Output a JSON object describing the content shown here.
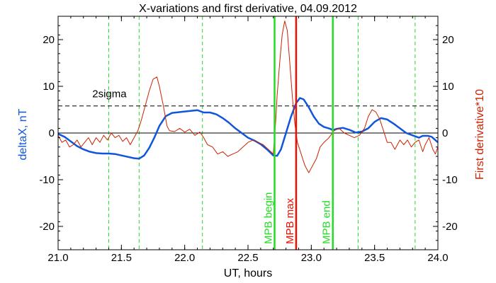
{
  "colors": {
    "background": "#ffffff",
    "axis": "#000000",
    "blue_series": "#1155dd",
    "red_series": "#cc2200",
    "green_lines": "#22dd22",
    "red_line": "#ee1100",
    "sigma_line": "#000000"
  },
  "chart_data": {
    "type": "line",
    "title": "X-variations and first derivative, 04.09.2012",
    "xlabel": "UT, hours",
    "ylabel_left": "deltaX, nT",
    "ylabel_right": "First derivative*10",
    "xlim": [
      21.0,
      24.0
    ],
    "ylim": [
      -25,
      25
    ],
    "x_ticks": [
      "21.0",
      "21.5",
      "22.0",
      "22.5",
      "23.0",
      "23.5",
      "24.0"
    ],
    "y_ticks_left": [
      "20",
      "10",
      "0",
      "-10",
      "-20"
    ],
    "y_ticks_right": [
      "20",
      "10",
      "0",
      "-10",
      "-20"
    ],
    "x_tick_values": [
      21.0,
      21.5,
      22.0,
      22.5,
      23.0,
      23.5,
      24.0
    ],
    "y_tick_values": [
      20,
      10,
      0,
      -10,
      -20
    ],
    "zero_line": 0,
    "sigma": {
      "label": "2sigma",
      "value": 5.8
    },
    "dashed_verticals": [
      21.4,
      21.64,
      22.14,
      23.37,
      23.82
    ],
    "markers": [
      {
        "label": "MPB begin",
        "x": 22.71,
        "color": "#22dd22"
      },
      {
        "label": "MPB max",
        "x": 22.88,
        "color": "#ee1100"
      },
      {
        "label": "MPB end",
        "x": 23.17,
        "color": "#22dd22"
      }
    ],
    "series": [
      {
        "name": "deltaX, nT",
        "color": "#1155dd",
        "points": [
          [
            21.0,
            -0.2
          ],
          [
            21.05,
            -0.8
          ],
          [
            21.1,
            -1.8
          ],
          [
            21.15,
            -2.8
          ],
          [
            21.2,
            -3.5
          ],
          [
            21.25,
            -4.0
          ],
          [
            21.3,
            -4.3
          ],
          [
            21.35,
            -4.4
          ],
          [
            21.4,
            -4.4
          ],
          [
            21.45,
            -4.5
          ],
          [
            21.5,
            -4.8
          ],
          [
            21.55,
            -5.1
          ],
          [
            21.6,
            -5.4
          ],
          [
            21.64,
            -5.5
          ],
          [
            21.68,
            -4.8
          ],
          [
            21.72,
            -3.2
          ],
          [
            21.76,
            -1.0
          ],
          [
            21.8,
            1.5
          ],
          [
            21.85,
            3.6
          ],
          [
            21.9,
            4.3
          ],
          [
            22.0,
            4.6
          ],
          [
            22.1,
            4.9
          ],
          [
            22.15,
            4.4
          ],
          [
            22.2,
            4.4
          ],
          [
            22.25,
            4.0
          ],
          [
            22.3,
            3.2
          ],
          [
            22.35,
            2.2
          ],
          [
            22.4,
            1.0
          ],
          [
            22.45,
            0.0
          ],
          [
            22.5,
            -1.0
          ],
          [
            22.55,
            -1.6
          ],
          [
            22.6,
            -2.4
          ],
          [
            22.65,
            -3.5
          ],
          [
            22.7,
            -4.8
          ],
          [
            22.73,
            -4.9
          ],
          [
            22.76,
            -3.5
          ],
          [
            22.8,
            0.0
          ],
          [
            22.84,
            3.5
          ],
          [
            22.88,
            6.4
          ],
          [
            22.91,
            7.5
          ],
          [
            22.94,
            7.2
          ],
          [
            22.98,
            5.5
          ],
          [
            23.02,
            3.5
          ],
          [
            23.06,
            2.0
          ],
          [
            23.1,
            1.3
          ],
          [
            23.15,
            0.9
          ],
          [
            23.17,
            0.6
          ],
          [
            23.2,
            0.9
          ],
          [
            23.25,
            1.1
          ],
          [
            23.3,
            0.7
          ],
          [
            23.35,
            0.1
          ],
          [
            23.4,
            0.3
          ],
          [
            23.45,
            1.0
          ],
          [
            23.5,
            2.4
          ],
          [
            23.55,
            3.2
          ],
          [
            23.6,
            2.9
          ],
          [
            23.65,
            2.0
          ],
          [
            23.7,
            1.0
          ],
          [
            23.75,
            0.0
          ],
          [
            23.8,
            -0.5
          ],
          [
            23.85,
            -1.0
          ],
          [
            23.88,
            -0.6
          ],
          [
            23.92,
            -0.6
          ],
          [
            23.95,
            -0.8
          ],
          [
            24.0,
            -2.0
          ]
        ]
      },
      {
        "name": "First derivative*10",
        "color": "#cc2200",
        "points": [
          [
            21.0,
            -0.5
          ],
          [
            21.03,
            -2.0
          ],
          [
            21.06,
            -1.5
          ],
          [
            21.09,
            -3.0
          ],
          [
            21.12,
            -2.5
          ],
          [
            21.15,
            -1.5
          ],
          [
            21.18,
            -3.0
          ],
          [
            21.21,
            -2.0
          ],
          [
            21.24,
            -1.0
          ],
          [
            21.27,
            -2.5
          ],
          [
            21.3,
            -1.0
          ],
          [
            21.33,
            -2.0
          ],
          [
            21.36,
            -0.5
          ],
          [
            21.39,
            -1.5
          ],
          [
            21.42,
            0.0
          ],
          [
            21.45,
            -1.0
          ],
          [
            21.48,
            -0.5
          ],
          [
            21.51,
            -1.8
          ],
          [
            21.54,
            -1.0
          ],
          [
            21.57,
            -2.5
          ],
          [
            21.6,
            -1.0
          ],
          [
            21.63,
            0.5
          ],
          [
            21.66,
            3.0
          ],
          [
            21.69,
            6.0
          ],
          [
            21.72,
            9.0
          ],
          [
            21.75,
            11.5
          ],
          [
            21.78,
            12.0
          ],
          [
            21.8,
            10.0
          ],
          [
            21.83,
            6.0
          ],
          [
            21.86,
            1.5
          ],
          [
            21.88,
            0.5
          ],
          [
            21.92,
            0.3
          ],
          [
            21.96,
            1.0
          ],
          [
            22.0,
            0.2
          ],
          [
            22.04,
            0.8
          ],
          [
            22.08,
            -0.5
          ],
          [
            22.12,
            0.2
          ],
          [
            22.15,
            -1.0
          ],
          [
            22.18,
            -2.5
          ],
          [
            22.22,
            -3.0
          ],
          [
            22.26,
            -4.5
          ],
          [
            22.3,
            -4.0
          ],
          [
            22.34,
            -5.0
          ],
          [
            22.38,
            -4.5
          ],
          [
            22.42,
            -4.0
          ],
          [
            22.46,
            -3.0
          ],
          [
            22.5,
            -2.0
          ],
          [
            22.54,
            -1.5
          ],
          [
            22.58,
            -2.0
          ],
          [
            22.62,
            -2.5
          ],
          [
            22.66,
            -3.5
          ],
          [
            22.7,
            -4.5
          ],
          [
            22.72,
            3.0
          ],
          [
            22.73,
            8.0
          ],
          [
            22.75,
            15.0
          ],
          [
            22.77,
            21.0
          ],
          [
            22.79,
            24.0
          ],
          [
            22.81,
            22.0
          ],
          [
            22.83,
            15.0
          ],
          [
            22.85,
            8.0
          ],
          [
            22.87,
            2.0
          ],
          [
            22.89,
            -2.0
          ],
          [
            22.92,
            -4.5
          ],
          [
            22.95,
            -7.0
          ],
          [
            22.98,
            -8.5
          ],
          [
            23.01,
            -7.0
          ],
          [
            23.04,
            -5.5
          ],
          [
            23.07,
            -3.0
          ],
          [
            23.1,
            -2.0
          ],
          [
            23.14,
            -1.0
          ],
          [
            23.18,
            0.5
          ],
          [
            23.22,
            1.0
          ],
          [
            23.26,
            0.0
          ],
          [
            23.3,
            -0.5
          ],
          [
            23.34,
            -1.0
          ],
          [
            23.38,
            -0.5
          ],
          [
            23.42,
            1.0
          ],
          [
            23.45,
            3.5
          ],
          [
            23.48,
            5.0
          ],
          [
            23.51,
            4.5
          ],
          [
            23.54,
            3.0
          ],
          [
            23.57,
            0.5
          ],
          [
            23.6,
            -2.0
          ],
          [
            23.63,
            -2.0
          ],
          [
            23.66,
            -3.5
          ],
          [
            23.7,
            -1.5
          ],
          [
            23.73,
            -2.5
          ],
          [
            23.76,
            -1.5
          ],
          [
            23.79,
            -3.0
          ],
          [
            23.82,
            -2.0
          ],
          [
            23.85,
            -1.5
          ],
          [
            23.88,
            -4.0
          ],
          [
            23.9,
            -2.5
          ],
          [
            23.93,
            -1.0
          ],
          [
            23.96,
            -3.5
          ],
          [
            23.98,
            -4.5
          ],
          [
            24.0,
            -3.0
          ]
        ]
      }
    ]
  }
}
